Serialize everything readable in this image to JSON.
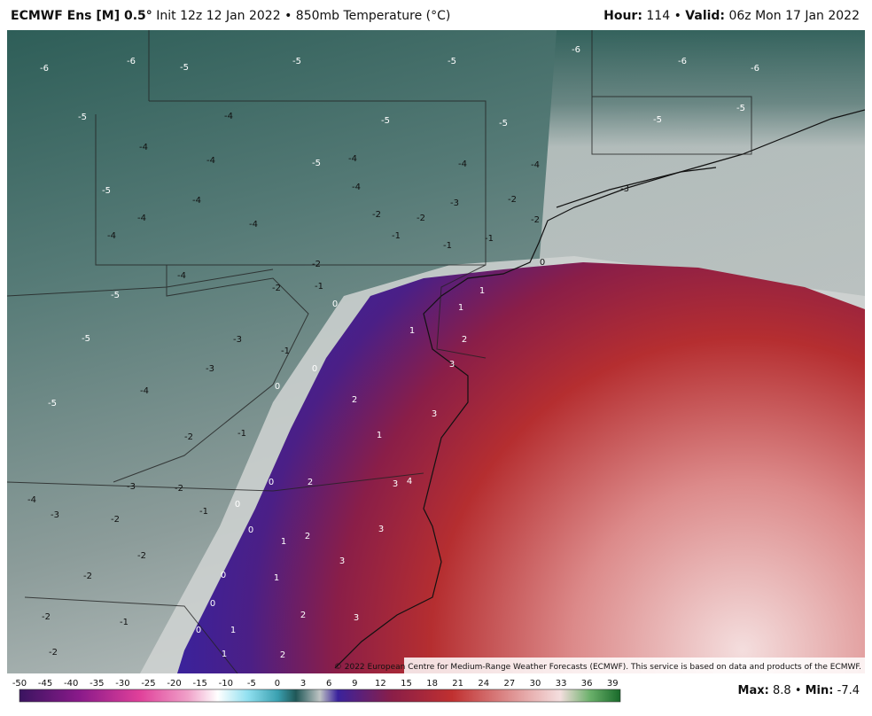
{
  "header": {
    "model": "ECMWF Ens [M] 0.5°",
    "init": "Init 12z 12 Jan 2022",
    "separator": "•",
    "field": "850mb Temperature (°C)",
    "hour_label": "Hour:",
    "hour": 114,
    "valid_label": "Valid:",
    "valid": "06z Mon 17 Jan 2022"
  },
  "copyright": "© 2022 European Centre for Medium-Range Weather Forecasts (ECMWF). This service is based on data and products of the ECMWF.",
  "colorbar_ticks": [
    -50,
    -45,
    -40,
    -35,
    -30,
    -25,
    -20,
    -15,
    -10,
    -5,
    0,
    3,
    6,
    9,
    12,
    15,
    18,
    21,
    24,
    27,
    30,
    33,
    36,
    39
  ],
  "stats": {
    "max_label": "Max:",
    "max": 8.8,
    "min_label": "Min:",
    "min": -7.4
  },
  "map_labels": [
    -6,
    -6,
    -5,
    -5,
    -5,
    -6,
    -6,
    -6,
    -5,
    -4,
    -5,
    -5,
    -5,
    -5,
    -4,
    -4,
    -5,
    -4,
    -4,
    -4,
    -3,
    -5,
    -4,
    -4,
    -3,
    -2,
    -4,
    -4,
    -2,
    -2,
    -2,
    -4,
    -1,
    -1,
    -1,
    -4,
    -2,
    -2,
    -1,
    0,
    0,
    -5,
    -5,
    -3,
    -1,
    0,
    1,
    1,
    2,
    1,
    3,
    3,
    -5,
    -4,
    -3,
    0,
    -1,
    -2,
    2,
    1,
    3,
    4,
    -4,
    -3,
    -2,
    0,
    2,
    0,
    -1,
    -3,
    -2,
    0,
    1,
    2,
    3,
    -2,
    -2,
    0,
    1,
    3,
    -2,
    -1,
    0,
    2,
    3,
    0,
    1,
    -2,
    1,
    2
  ]
}
